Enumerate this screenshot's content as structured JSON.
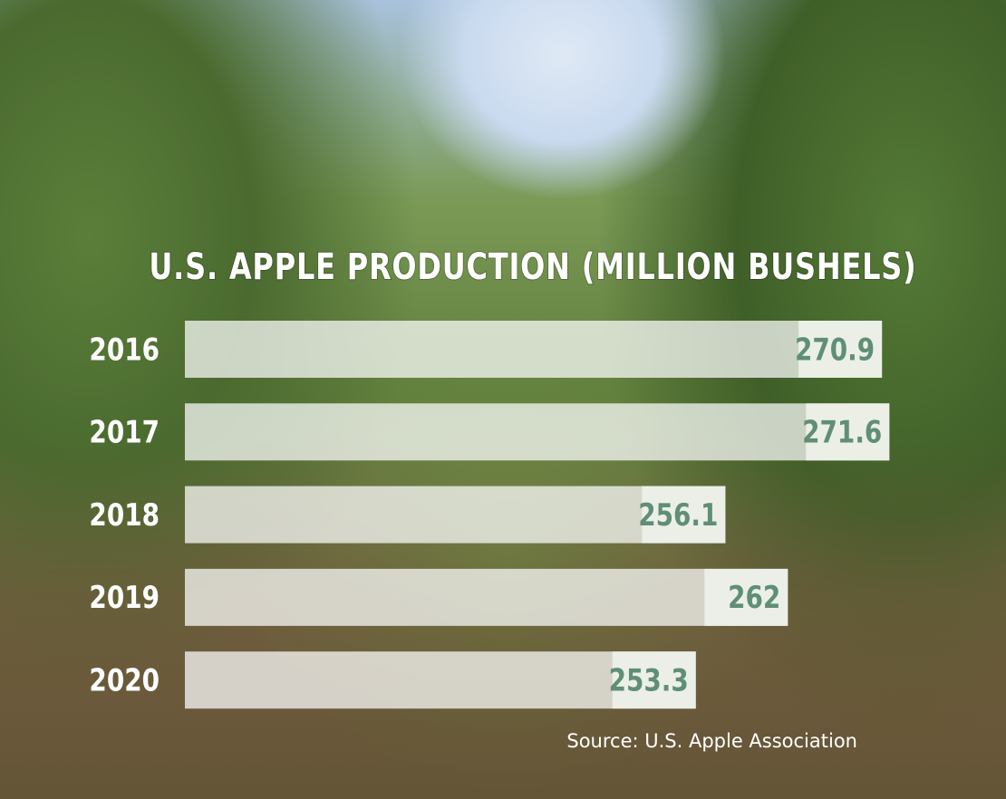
{
  "chart_data": {
    "type": "hbar",
    "title": "U.S. APPLE PRODUCTION (MILLION BUSHELS)",
    "categories": [
      "2016",
      "2017",
      "2018",
      "2019",
      "2020"
    ],
    "values": [
      270.9,
      271.6,
      256.1,
      262,
      253.3
    ],
    "color": "#ffffff",
    "label_color": "#5f8f74",
    "xlim": [
      205,
      275
    ],
    "source": "Source: U.S. Apple Association"
  }
}
